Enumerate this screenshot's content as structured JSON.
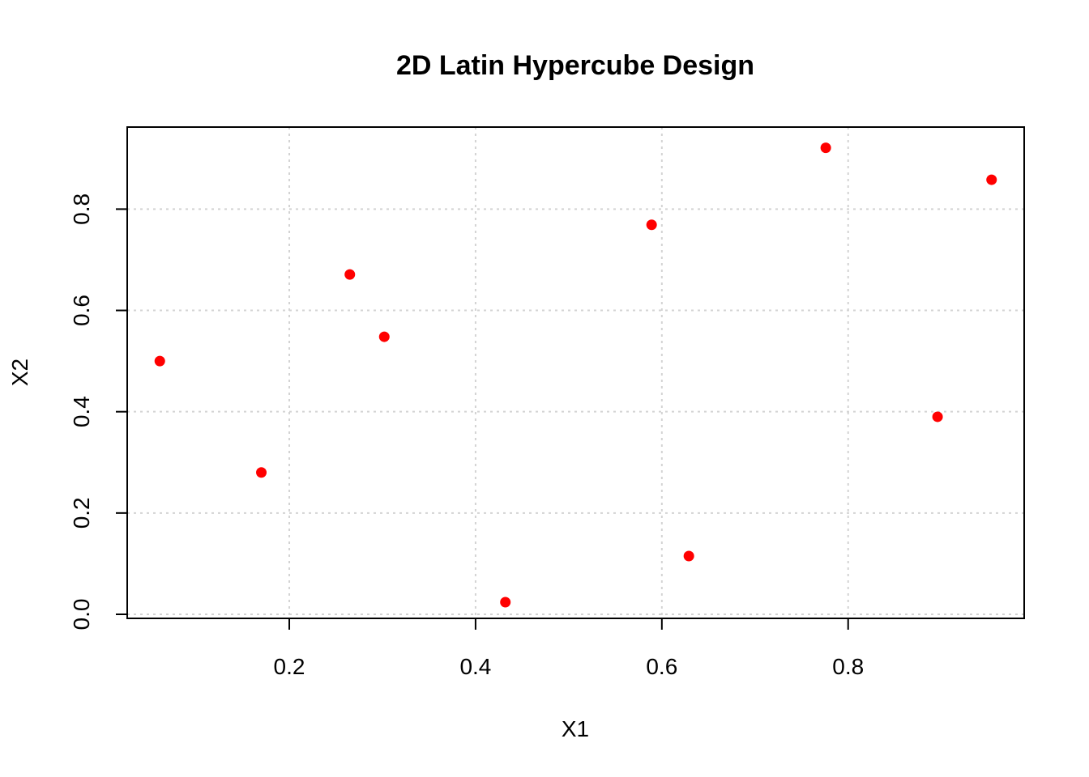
{
  "chart_data": {
    "type": "scatter",
    "title": "2D Latin Hypercube Design",
    "xlabel": "X1",
    "ylabel": "X2",
    "xlim": [
      0.026,
      0.989
    ],
    "ylim": [
      -0.008,
      0.962
    ],
    "x_ticks": [
      0.2,
      0.4,
      0.6,
      0.8
    ],
    "x_tick_labels": [
      "0.2",
      "0.4",
      "0.6",
      "0.8"
    ],
    "y_ticks": [
      0.0,
      0.2,
      0.4,
      0.6,
      0.8
    ],
    "y_tick_labels": [
      "0.0",
      "0.2",
      "0.4",
      "0.6",
      "0.8"
    ],
    "grid": true,
    "point_color": "#ff0000",
    "points": [
      {
        "x": 0.061,
        "y": 0.5
      },
      {
        "x": 0.17,
        "y": 0.28
      },
      {
        "x": 0.265,
        "y": 0.671
      },
      {
        "x": 0.302,
        "y": 0.548
      },
      {
        "x": 0.432,
        "y": 0.024
      },
      {
        "x": 0.589,
        "y": 0.769
      },
      {
        "x": 0.629,
        "y": 0.115
      },
      {
        "x": 0.776,
        "y": 0.921
      },
      {
        "x": 0.896,
        "y": 0.39
      },
      {
        "x": 0.954,
        "y": 0.858
      }
    ]
  }
}
